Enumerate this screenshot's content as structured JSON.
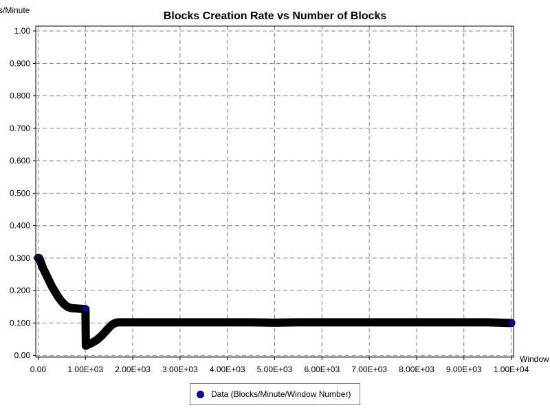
{
  "chart_data": {
    "type": "scatter",
    "title": "Blocks Creation Rate vs Number of Blocks",
    "ylabel": "s/Minute",
    "xlabel": "Window",
    "xlim": [
      -50,
      10050
    ],
    "ylim": [
      -0.005,
      1.015
    ],
    "x_ticks": [
      0,
      1000,
      2000,
      3000,
      4000,
      5000,
      6000,
      7000,
      8000,
      9000,
      10000
    ],
    "x_tick_labels": [
      "0.00",
      "1.00E+03",
      "2.00E+03",
      "3.00E+03",
      "4.00E+03",
      "5.00E+03",
      "6.00E+03",
      "7.00E+03",
      "8.00E+03",
      "9.00E+03",
      "1.00E+04"
    ],
    "y_ticks": [
      0,
      0.1,
      0.2,
      0.3,
      0.4,
      0.5,
      0.6,
      0.7,
      0.8,
      0.9,
      1.0
    ],
    "y_tick_labels": [
      "0.00",
      "0.100",
      "0.200",
      "0.300",
      "0.400",
      "0.500",
      "0.600",
      "0.700",
      "0.800",
      "0.900",
      "1.00"
    ],
    "grid": true,
    "legend_position": "bottom",
    "series": [
      {
        "name": "Data (Blocks/Minute/Window Number)",
        "color": "#0000cc",
        "trace_color": "#000000",
        "x": [
          0,
          20,
          50,
          100,
          150,
          200,
          250,
          300,
          350,
          400,
          450,
          500,
          550,
          600,
          650,
          700,
          750,
          800,
          850,
          900,
          950,
          990,
          1000,
          1010,
          1050,
          1100,
          1150,
          1200,
          1250,
          1300,
          1350,
          1400,
          1450,
          1500,
          1550,
          1600,
          1650,
          1700,
          1750,
          1800,
          2000,
          2500,
          3000,
          3500,
          4000,
          4500,
          5000,
          5500,
          6000,
          6500,
          7000,
          7500,
          8000,
          8500,
          9000,
          9500,
          10000
        ],
        "y": [
          0.3,
          0.3,
          0.29,
          0.27,
          0.255,
          0.24,
          0.225,
          0.21,
          0.198,
          0.186,
          0.175,
          0.166,
          0.158,
          0.152,
          0.148,
          0.146,
          0.145,
          0.145,
          0.144,
          0.144,
          0.143,
          0.143,
          0.143,
          0.03,
          0.033,
          0.036,
          0.04,
          0.044,
          0.049,
          0.055,
          0.062,
          0.07,
          0.078,
          0.086,
          0.093,
          0.098,
          0.101,
          0.102,
          0.102,
          0.102,
          0.102,
          0.102,
          0.102,
          0.102,
          0.102,
          0.102,
          0.101,
          0.102,
          0.102,
          0.102,
          0.102,
          0.102,
          0.102,
          0.102,
          0.102,
          0.102,
          0.1
        ]
      }
    ]
  }
}
